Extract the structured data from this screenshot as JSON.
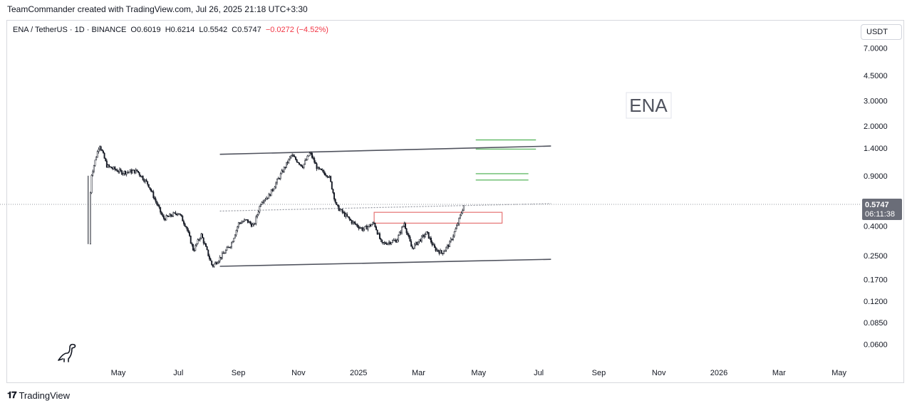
{
  "header": {
    "credit": "TeamCommander created with TradingView.com, Jul 26, 2025 21:18 UTC+3:30"
  },
  "legend": {
    "symbol": "ENA / TetherUS · 1D · BINANCE",
    "open": "O0.6019",
    "high": "H0.6214",
    "low": "L0.5542",
    "close": "C0.5747",
    "change": "−0.0272 (−4.52%)"
  },
  "toolbar": {
    "currency": "USDT"
  },
  "annotation": {
    "label": "ENA"
  },
  "price_label": {
    "price": "0.5747",
    "countdown": "06:11:38"
  },
  "footer": {
    "brand": "TradingView"
  },
  "colors": {
    "up": "#131722",
    "down": "#131722",
    "trendline": "#50535e",
    "support_zone": "#e57373",
    "targets": "#66bb6a",
    "price_tag": "#6a6d78"
  },
  "chart_data": {
    "type": "candlestick",
    "scale": "log",
    "symbol": "ENA/USDT",
    "timeframe": "1D",
    "ylim": [
      0.05,
      8.5
    ],
    "y_ticks": [
      "7.0000",
      "4.5000",
      "3.0000",
      "2.0000",
      "1.4000",
      "0.9000",
      "0.4000",
      "0.2500",
      "0.1700",
      "0.1200",
      "0.0850",
      "0.0600"
    ],
    "x_ticks": [
      "May",
      "Jul",
      "Sep",
      "Nov",
      "2025",
      "Mar",
      "May",
      "Jul",
      "Sep",
      "Nov",
      "2026",
      "Mar",
      "May"
    ],
    "price_path": [
      {
        "x": 0,
        "y": 0.3
      },
      {
        "x": 0.4,
        "y": 0.9
      },
      {
        "x": 1.5,
        "y": 1.5
      },
      {
        "x": 2.5,
        "y": 1.05
      },
      {
        "x": 4.5,
        "y": 0.95
      },
      {
        "x": 6.5,
        "y": 0.97
      },
      {
        "x": 8,
        "y": 0.78
      },
      {
        "x": 10,
        "y": 0.45
      },
      {
        "x": 12,
        "y": 0.5
      },
      {
        "x": 13,
        "y": 0.4
      },
      {
        "x": 14,
        "y": 0.27
      },
      {
        "x": 15,
        "y": 0.35
      },
      {
        "x": 16.5,
        "y": 0.21
      },
      {
        "x": 17.5,
        "y": 0.24
      },
      {
        "x": 19,
        "y": 0.3
      },
      {
        "x": 20,
        "y": 0.42
      },
      {
        "x": 21,
        "y": 0.44
      },
      {
        "x": 22,
        "y": 0.4
      },
      {
        "x": 23,
        "y": 0.6
      },
      {
        "x": 24,
        "y": 0.65
      },
      {
        "x": 25.5,
        "y": 0.9
      },
      {
        "x": 27,
        "y": 1.25
      },
      {
        "x": 28.5,
        "y": 1.05
      },
      {
        "x": 29.5,
        "y": 1.3
      },
      {
        "x": 30.5,
        "y": 1.0
      },
      {
        "x": 32,
        "y": 0.9
      },
      {
        "x": 33,
        "y": 0.55
      },
      {
        "x": 35,
        "y": 0.43
      },
      {
        "x": 36.5,
        "y": 0.38
      },
      {
        "x": 38,
        "y": 0.42
      },
      {
        "x": 39,
        "y": 0.3
      },
      {
        "x": 41,
        "y": 0.32
      },
      {
        "x": 42,
        "y": 0.42
      },
      {
        "x": 43,
        "y": 0.28
      },
      {
        "x": 45,
        "y": 0.36
      },
      {
        "x": 46,
        "y": 0.28
      },
      {
        "x": 47,
        "y": 0.26
      },
      {
        "x": 48,
        "y": 0.3
      },
      {
        "x": 49,
        "y": 0.4
      },
      {
        "x": 50,
        "y": 0.58
      }
    ],
    "drawings": {
      "upper_channel": {
        "from": {
          "x": 17.5,
          "y": 1.27
        },
        "to": {
          "x": 61.5,
          "y": 1.45
        }
      },
      "lower_channel": {
        "from": {
          "x": 17.5,
          "y": 0.21
        },
        "to": {
          "x": 61.5,
          "y": 0.235
        }
      },
      "mid_line": {
        "from": {
          "x": 17.5,
          "y": 0.51
        },
        "to": {
          "x": 61.5,
          "y": 0.575
        }
      },
      "support_zone": {
        "x_from": 38,
        "x_to": 55,
        "y_low": 0.42,
        "y_high": 0.5
      },
      "targets": [
        {
          "x_from": 51.5,
          "x_to": 58.5,
          "y": 0.93
        },
        {
          "x_from": 51.5,
          "x_to": 58.5,
          "y": 0.84
        },
        {
          "x_from": 51.5,
          "x_to": 59.5,
          "y": 1.6
        },
        {
          "x_from": 51.5,
          "x_to": 59.5,
          "y": 1.38
        }
      ]
    }
  }
}
